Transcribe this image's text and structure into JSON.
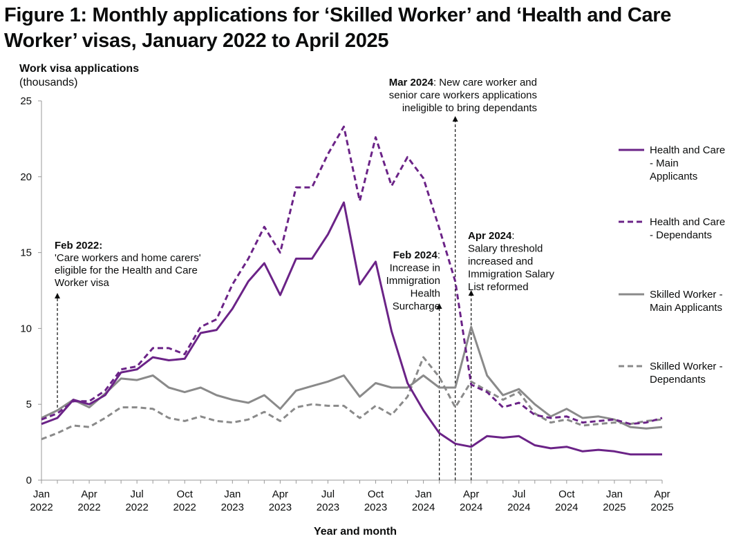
{
  "title": "Figure 1: Monthly applications for ‘Skilled Worker’ and ‘Health and Care Worker’ visas, January 2022 to April 2025",
  "chart_data": {
    "type": "line",
    "title": "Figure 1: Monthly applications for ‘Skilled Worker’ and ‘Health and Care Worker’ visas, January 2022 to April 2025",
    "ylabel": "Work visa applications",
    "ylabel_sub": "(thousands)",
    "xlabel": "Year and month",
    "ylim": [
      0,
      25
    ],
    "yticks": [
      "0",
      "5",
      "10",
      "15",
      "20",
      "25"
    ],
    "grid": false,
    "legend_position": "right",
    "x": [
      "Jan 2022",
      "Feb 2022",
      "Mar 2022",
      "Apr 2022",
      "May 2022",
      "Jun 2022",
      "Jul 2022",
      "Aug 2022",
      "Sep 2022",
      "Oct 2022",
      "Nov 2022",
      "Dec 2022",
      "Jan 2023",
      "Feb 2023",
      "Mar 2023",
      "Apr 2023",
      "May 2023",
      "Jun 2023",
      "Jul 2023",
      "Aug 2023",
      "Sep 2023",
      "Oct 2023",
      "Nov 2023",
      "Dec 2023",
      "Jan 2024",
      "Feb 2024",
      "Mar 2024",
      "Apr 2024",
      "May 2024",
      "Jun 2024",
      "Jul 2024",
      "Aug 2024",
      "Sep 2024",
      "Oct 2024",
      "Nov 2024",
      "Dec 2024",
      "Jan 2025",
      "Feb 2025",
      "Mar 2025",
      "Apr 2025"
    ],
    "xtick_labels": [
      {
        "month": "Jan",
        "year": "2022"
      },
      {
        "month": "Apr",
        "year": "2022"
      },
      {
        "month": "Jul",
        "year": "2022"
      },
      {
        "month": "Oct",
        "year": "2022"
      },
      {
        "month": "Jan",
        "year": "2023"
      },
      {
        "month": "Apr",
        "year": "2023"
      },
      {
        "month": "Jul",
        "year": "2023"
      },
      {
        "month": "Oct",
        "year": "2023"
      },
      {
        "month": "Jan",
        "year": "2024"
      },
      {
        "month": "Apr",
        "year": "2024"
      },
      {
        "month": "Jul",
        "year": "2024"
      },
      {
        "month": "Oct",
        "year": "2024"
      },
      {
        "month": "Jan",
        "year": "2025"
      },
      {
        "month": "Apr",
        "year": "2025"
      }
    ],
    "series": [
      {
        "name": "Health and Care - Main Applicants",
        "legend_lines": [
          "Health and Care",
          "- Main",
          "Applicants"
        ],
        "color": "#6b2387",
        "dashed": false,
        "values": [
          3.7,
          4.1,
          5.3,
          5.0,
          5.6,
          7.1,
          7.3,
          8.1,
          7.9,
          8.0,
          9.7,
          9.9,
          11.3,
          13.1,
          14.3,
          12.2,
          14.6,
          14.6,
          16.2,
          18.3,
          12.9,
          14.4,
          9.8,
          6.4,
          4.6,
          3.1,
          2.4,
          2.2,
          2.9,
          2.8,
          2.9,
          2.3,
          2.1,
          2.2,
          1.9,
          2.0,
          1.9,
          1.7,
          1.7,
          1.7
        ]
      },
      {
        "name": "Health and Care - Dependants",
        "legend_lines": [
          "Health and Care",
          "- Dependants"
        ],
        "color": "#6b2387",
        "dashed": true,
        "values": [
          4.0,
          4.4,
          5.2,
          5.2,
          5.9,
          7.3,
          7.5,
          8.7,
          8.7,
          8.3,
          10.1,
          10.6,
          12.9,
          14.6,
          16.7,
          15.0,
          19.3,
          19.3,
          21.5,
          23.3,
          18.4,
          22.6,
          19.4,
          21.3,
          19.9,
          16.6,
          13.1,
          6.3,
          5.8,
          4.8,
          5.1,
          4.3,
          4.1,
          4.2,
          3.8,
          3.9,
          4.0,
          3.7,
          3.8,
          4.1
        ]
      },
      {
        "name": "Skilled Worker - Main Applicants",
        "legend_lines": [
          "Skilled Worker -",
          "Main Applicants"
        ],
        "color": "#8a8a8a",
        "dashed": false,
        "values": [
          4.1,
          4.6,
          5.3,
          4.8,
          5.7,
          6.7,
          6.6,
          6.9,
          6.1,
          5.8,
          6.1,
          5.6,
          5.3,
          5.1,
          5.6,
          4.7,
          5.9,
          6.2,
          6.5,
          6.9,
          5.5,
          6.4,
          6.1,
          6.1,
          6.9,
          6.1,
          6.1,
          10.1,
          6.9,
          5.6,
          6.0,
          5.0,
          4.2,
          4.7,
          4.1,
          4.2,
          4.0,
          3.5,
          3.4,
          3.5
        ]
      },
      {
        "name": "Skilled Worker - Dependants",
        "legend_lines": [
          "Skilled Worker -",
          "Dependants"
        ],
        "color": "#8a8a8a",
        "dashed": true,
        "values": [
          2.7,
          3.1,
          3.6,
          3.5,
          4.1,
          4.8,
          4.8,
          4.7,
          4.1,
          3.9,
          4.2,
          3.9,
          3.8,
          4.0,
          4.5,
          3.9,
          4.8,
          5.0,
          4.9,
          4.9,
          4.1,
          4.9,
          4.3,
          5.5,
          8.1,
          6.8,
          4.8,
          6.5,
          5.9,
          5.3,
          5.8,
          4.4,
          3.8,
          4.0,
          3.6,
          3.7,
          3.8,
          3.7,
          3.9,
          4.0
        ]
      }
    ],
    "annotations": [
      {
        "date": "Feb 2022",
        "lines": [
          {
            "bold": "Feb 2022:",
            "rest": ""
          },
          {
            "bold": "",
            "rest": "'Care workers and home carers'"
          },
          {
            "bold": "",
            "rest": "eligible for the Health and Care"
          },
          {
            "bold": "",
            "rest": "Worker visa"
          }
        ]
      },
      {
        "date": "Feb 2024",
        "lines": [
          {
            "bold": "Feb 2024",
            "rest": ":"
          },
          {
            "bold": "",
            "rest": "Increase in"
          },
          {
            "bold": "",
            "rest": "Immigration"
          },
          {
            "bold": "",
            "rest": "Health"
          },
          {
            "bold": "",
            "rest": "Surcharge"
          }
        ]
      },
      {
        "date": "Mar 2024",
        "lines": [
          {
            "bold": "Mar 2024",
            "rest": ": New care worker and"
          },
          {
            "bold": "",
            "rest": "senior care workers applications"
          },
          {
            "bold": "",
            "rest": "ineligible to bring dependants"
          }
        ]
      },
      {
        "date": "Apr 2024",
        "lines": [
          {
            "bold": "Apr 2024",
            "rest": ":"
          },
          {
            "bold": "",
            "rest": "Salary threshold"
          },
          {
            "bold": "",
            "rest": "increased and"
          },
          {
            "bold": "",
            "rest": "Immigration Salary"
          },
          {
            "bold": "",
            "rest": "List reformed"
          }
        ]
      }
    ]
  }
}
